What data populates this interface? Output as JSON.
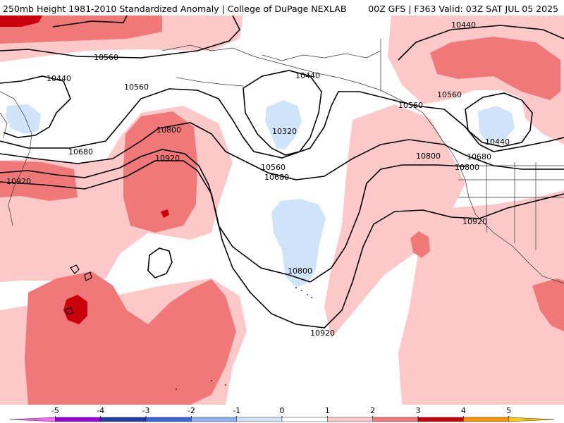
{
  "header": {
    "title_left": "250mb Height 1981-2010 Standardized Anomaly | College of DuPage NEXLAB",
    "title_right": "00Z GFS | F363 Valid: 03Z SAT JUL 05 2025"
  },
  "map": {
    "contour_labels": [
      "10440",
      "10560",
      "10560",
      "10440",
      "10440",
      "10320",
      "10560",
      "10560",
      "10440",
      "10680",
      "10800",
      "10680",
      "10800",
      "10920",
      "10560",
      "10680",
      "10920",
      "10800",
      "10920",
      "10800",
      "10920"
    ]
  },
  "legend": {
    "ticks": [
      "-5",
      "-4",
      "-3",
      "-2",
      "-1",
      "0",
      "1",
      "2",
      "3",
      "4",
      "5"
    ],
    "colors": [
      "#ff66ff",
      "#9b00d9",
      "#1e3fa8",
      "#3a67d6",
      "#8ab2f0",
      "#cfe3fb",
      "#ffffff",
      "#fcc8c8",
      "#f07878",
      "#c8000a",
      "#ff9600",
      "#ffcc00"
    ]
  }
}
